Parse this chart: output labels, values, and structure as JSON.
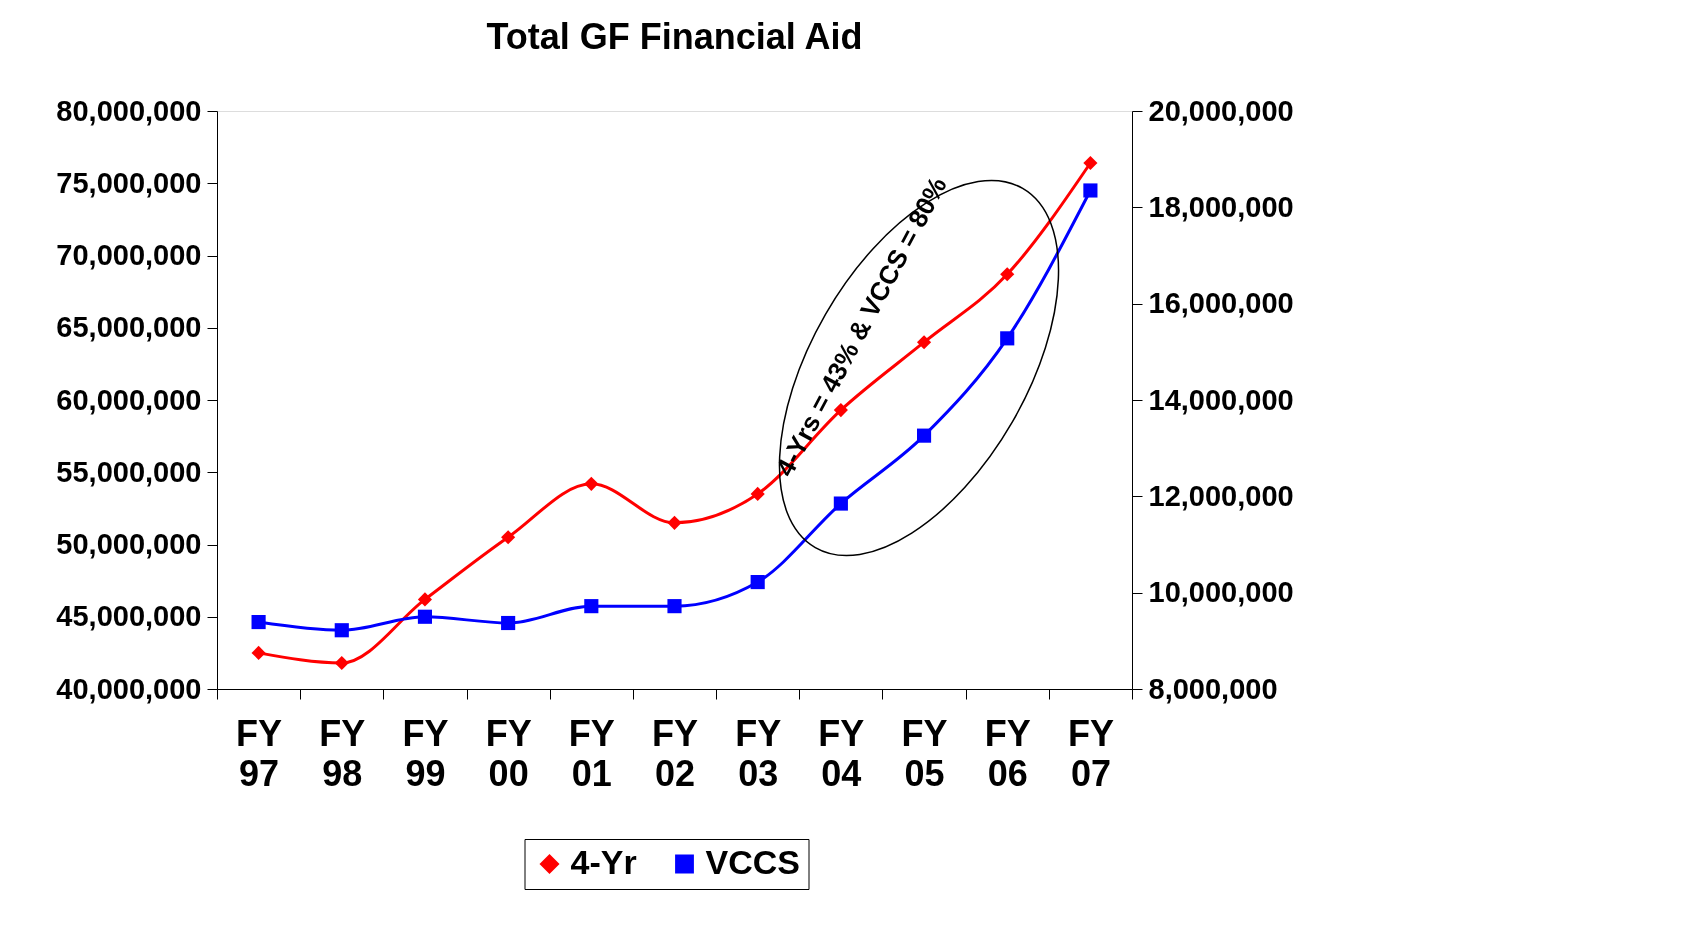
{
  "chart_data": {
    "type": "line",
    "title": "Total GF Financial Aid",
    "categories": [
      "FY 97",
      "FY 98",
      "FY 99",
      "FY 00",
      "FY 01",
      "FY 02",
      "FY 03",
      "FY 04",
      "FY 05",
      "FY 06",
      "FY 07"
    ],
    "series": [
      {
        "name": "4-Yr",
        "color": "#ff0000",
        "marker": "diamond",
        "values": [
          42500000,
          41800000,
          46200000,
          50500000,
          54200000,
          51500000,
          53500000,
          59300000,
          64000000,
          68700000,
          76400000
        ]
      },
      {
        "name": "VCCS",
        "color": "#0000ff",
        "marker": "square",
        "axis": "y2",
        "values": [
          9390000,
          9220000,
          9500000,
          9370000,
          9720000,
          9720000,
          10220000,
          11850000,
          13260000,
          15280000,
          18350000
        ]
      }
    ],
    "ylim": [
      40000000,
      80000000
    ],
    "yticks": [
      {
        "value": 40000000,
        "label": "40,000,000"
      },
      {
        "value": 45000000,
        "label": "45,000,000"
      },
      {
        "value": 50000000,
        "label": "50,000,000"
      },
      {
        "value": 55000000,
        "label": "55,000,000"
      },
      {
        "value": 60000000,
        "label": "60,000,000"
      },
      {
        "value": 65000000,
        "label": "65,000,000"
      },
      {
        "value": 70000000,
        "label": "70,000,000"
      },
      {
        "value": 75000000,
        "label": "75,000,000"
      },
      {
        "value": 80000000,
        "label": "80,000,000"
      }
    ],
    "y2lim": [
      8000000,
      20000000
    ],
    "y2ticks": [
      {
        "value": 8000000,
        "label": "8,000,000"
      },
      {
        "value": 10000000,
        "label": "10,000,000"
      },
      {
        "value": 12000000,
        "label": "12,000,000"
      },
      {
        "value": 14000000,
        "label": "14,000,000"
      },
      {
        "value": 16000000,
        "label": "16,000,000"
      },
      {
        "value": 18000000,
        "label": "18,000,000"
      },
      {
        "value": 20000000,
        "label": "20,000,000"
      }
    ],
    "annotations": [
      "4-Yrs = 43% & VCCS = 80%"
    ],
    "legend": "bottom",
    "grid": false,
    "line_style": "solid"
  }
}
